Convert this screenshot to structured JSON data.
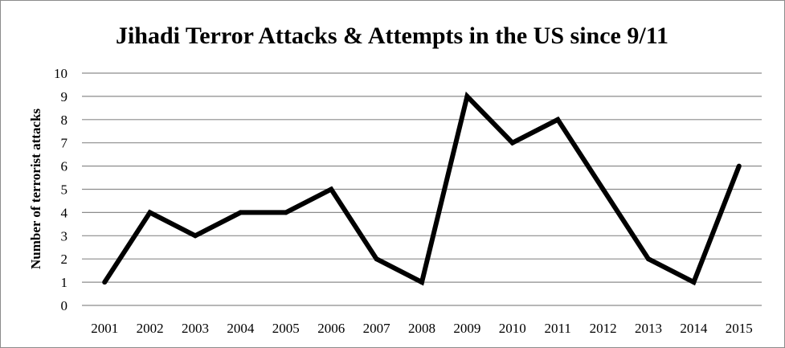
{
  "chart_data": {
    "type": "line",
    "title": "Jihadi Terror Attacks & Attempts in the US since 9/11",
    "xlabel": "",
    "ylabel": "Number of terrorist attacks",
    "categories": [
      "2001",
      "2002",
      "2003",
      "2004",
      "2005",
      "2006",
      "2007",
      "2008",
      "2009",
      "2010",
      "2011",
      "2012",
      "2013",
      "2014",
      "2015"
    ],
    "series": [
      {
        "values": [
          1,
          4,
          3,
          4,
          4,
          5,
          2,
          1,
          9,
          7,
          8,
          5,
          2,
          1,
          6
        ]
      }
    ],
    "ylim": [
      0,
      10
    ],
    "yticks": [
      "0",
      "1",
      "2",
      "3",
      "4",
      "5",
      "6",
      "7",
      "8",
      "9",
      "10"
    ],
    "grid": true,
    "legend": "none",
    "colors": {
      "line": "#000000",
      "grid": "#8c8c8c",
      "border": "#8c8c8c"
    }
  }
}
